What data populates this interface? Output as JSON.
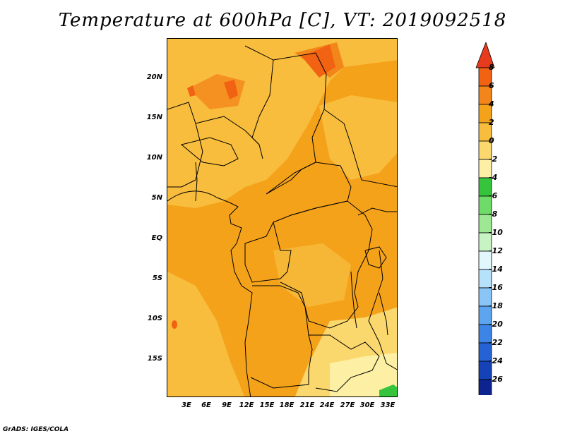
{
  "title": "Temperature at 600hPa [C], VT: 2019092518",
  "footer": "GrADS: IGES/COLA",
  "y_axis_labels": [
    "20N",
    "15N",
    "10N",
    "5N",
    "EQ",
    "5S",
    "10S",
    "15S"
  ],
  "x_axis_labels": [
    "3E",
    "6E",
    "9E",
    "12E",
    "15E",
    "18E",
    "21E",
    "24E",
    "27E",
    "30E",
    "33E"
  ],
  "colorbar": {
    "labels": [
      "8",
      "6",
      "4",
      "2",
      "0",
      "-2",
      "-4",
      "-6",
      "-8",
      "-10",
      "-12",
      "-14",
      "-16",
      "-18",
      "-20",
      "-22",
      "-24",
      "-26"
    ],
    "colors": [
      "#e83a1c",
      "#f16213",
      "#f3861a",
      "#f5a21b",
      "#f8bd3d",
      "#fbd86d",
      "#fdf0a4",
      "#36c43c",
      "#6fdc6a",
      "#9de893",
      "#c8f4c4",
      "#e1f7fb",
      "#b6e1fb",
      "#89c6f7",
      "#5ea5f0",
      "#3c84e6",
      "#2563d5",
      "#1542b6",
      "#0c2390",
      "#e8e4fa"
    ]
  },
  "map": {
    "colors": {
      "base": "#f5a21b",
      "lighter": "#f8bd3d",
      "light": "#fbd86d",
      "pale": "#fdf0a4",
      "warm": "#f3861a",
      "hot": "#f16213",
      "green": "#36c43c"
    }
  }
}
